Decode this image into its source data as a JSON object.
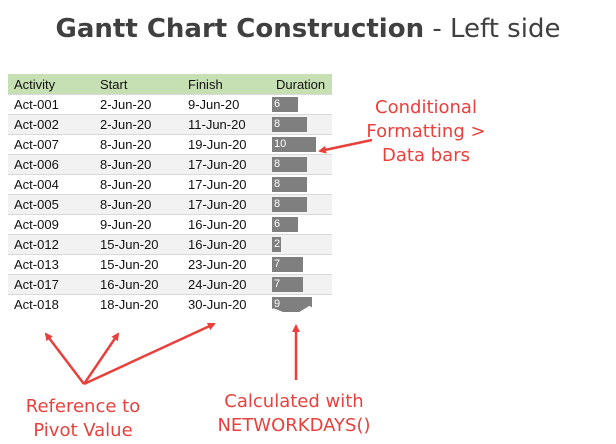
{
  "title": {
    "bold": "Gantt Chart Construction",
    "rest": " - Left side"
  },
  "table": {
    "headers": [
      "Activity",
      "Start",
      "Finish",
      "Duration"
    ],
    "max_duration": 10,
    "rows": [
      {
        "activity": "Act-001",
        "start": "2-Jun-20",
        "finish": "9-Jun-20",
        "duration": 6
      },
      {
        "activity": "Act-002",
        "start": "2-Jun-20",
        "finish": "11-Jun-20",
        "duration": 8
      },
      {
        "activity": "Act-007",
        "start": "8-Jun-20",
        "finish": "19-Jun-20",
        "duration": 10
      },
      {
        "activity": "Act-006",
        "start": "8-Jun-20",
        "finish": "17-Jun-20",
        "duration": 8
      },
      {
        "activity": "Act-004",
        "start": "8-Jun-20",
        "finish": "17-Jun-20",
        "duration": 8
      },
      {
        "activity": "Act-005",
        "start": "8-Jun-20",
        "finish": "17-Jun-20",
        "duration": 8
      },
      {
        "activity": "Act-009",
        "start": "9-Jun-20",
        "finish": "16-Jun-20",
        "duration": 6
      },
      {
        "activity": "Act-012",
        "start": "15-Jun-20",
        "finish": "16-Jun-20",
        "duration": 2
      },
      {
        "activity": "Act-013",
        "start": "15-Jun-20",
        "finish": "23-Jun-20",
        "duration": 7
      },
      {
        "activity": "Act-017",
        "start": "16-Jun-20",
        "finish": "24-Jun-20",
        "duration": 7
      },
      {
        "activity": "Act-018",
        "start": "18-Jun-20",
        "finish": "30-Jun-20",
        "duration": 9
      }
    ]
  },
  "annotations": {
    "conditional": [
      "Conditional",
      "Formatting >",
      "Data bars"
    ],
    "reference": [
      "Reference to",
      "Pivot Value"
    ],
    "calculated": [
      "Calculated with",
      "NETWORKDAYS()"
    ]
  },
  "colors": {
    "accent": "#e8413d",
    "header_bg": "#c6e0b4",
    "bar": "#7f7f7f"
  }
}
